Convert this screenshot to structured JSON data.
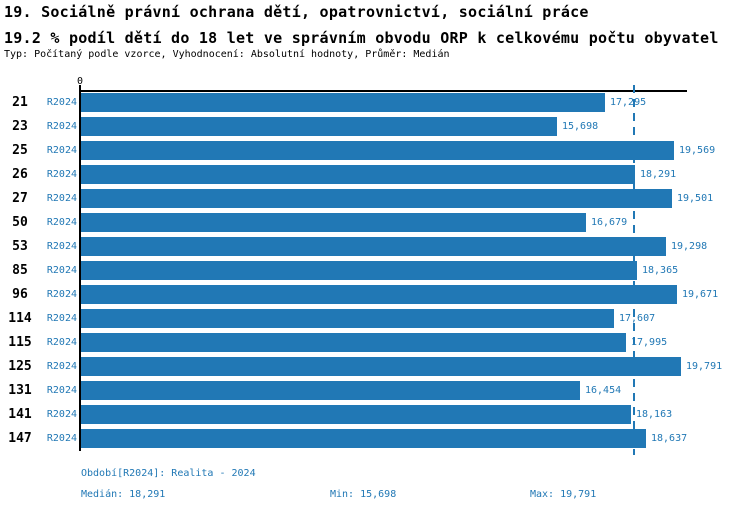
{
  "header": {
    "title": "19. Sociálně právní ochrana dětí, opatrovnictví, sociální práce",
    "subtitle": "19.2 % podíl dětí do 18 let ve správním obvodu ORP k celkovému počtu obyvatel",
    "meta": "Typ: Počítaný podle vzorce, Vyhodnocení: Absolutní hodnoty, Průměr: Medián"
  },
  "chart_data": {
    "type": "bar",
    "orientation": "horizontal",
    "title": "19. Sociálně právní ochrana dětí, opatrovnictví, sociální práce",
    "subtitle": "19.2 % podíl dětí do 18 let ve správním obvodu ORP k celkovému počtu obyvatel",
    "categories": [
      "21",
      "23",
      "25",
      "26",
      "27",
      "50",
      "53",
      "85",
      "96",
      "114",
      "115",
      "125",
      "131",
      "141",
      "147"
    ],
    "series": [
      {
        "name": "R2024",
        "values": [
          17295,
          15698,
          19569,
          18291,
          19501,
          16679,
          19298,
          18365,
          19671,
          17607,
          17995,
          19791,
          16454,
          18163,
          18637
        ],
        "value_labels": [
          "17,295",
          "15,698",
          "19,569",
          "18,291",
          "19,501",
          "16,679",
          "19,298",
          "18,365",
          "19,671",
          "17,607",
          "17,995",
          "19,791",
          "16,454",
          "18,163",
          "18,637"
        ]
      }
    ],
    "xlabel": "",
    "ylabel": "",
    "xlim": [
      0,
      20000
    ],
    "axis_zero_label": "0",
    "grid": false,
    "legend_position": "none",
    "median_value": 18291,
    "bar_color": "#2178b5",
    "median_line_style": "dashed"
  },
  "footer": {
    "period": "Období[R2024]: Realita - 2024",
    "median": "Medián: 18,291",
    "min": "Min: 15,698",
    "max": "Max: 19,791"
  }
}
